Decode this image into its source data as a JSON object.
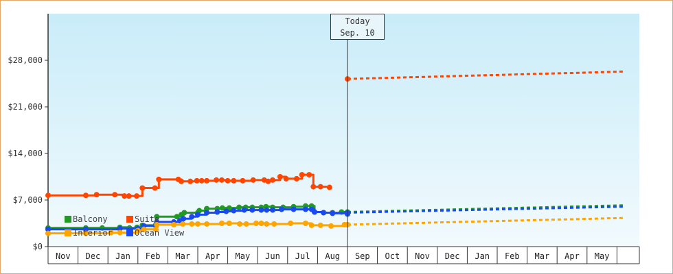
{
  "chart_data": {
    "type": "line",
    "ylim": [
      0,
      35000
    ],
    "y_ticks": [
      "$0",
      "$7,000",
      "$14,000",
      "$21,000",
      "$28,000"
    ],
    "y_tick_values": [
      0,
      7000,
      14000,
      21000,
      28000
    ],
    "x_ticks": [
      "Nov",
      "Dec",
      "Jan",
      "Feb",
      "Mar",
      "Apr",
      "May",
      "Jun",
      "Jul",
      "Aug",
      "Sep",
      "Oct",
      "Nov",
      "Dec",
      "Jan",
      "Feb",
      "Mar",
      "Apr",
      "May"
    ],
    "x_range_months": [
      0,
      19.2
    ],
    "today": {
      "line1": "Today",
      "line2": "Sep. 10",
      "x": 10.0
    },
    "colors": {
      "Suite": "#ff4500",
      "Balcony": "#229922",
      "Ocean View": "#1a4aee",
      "Interior": "#ffa500"
    },
    "legend": [
      {
        "name": "Balcony",
        "color": "#229922"
      },
      {
        "name": "Suite",
        "color": "#ff4500"
      },
      {
        "name": "Interior",
        "color": "#ffa500"
      },
      {
        "name": "Ocean View",
        "color": "#1a4aee"
      }
    ],
    "series": [
      {
        "name": "Suite",
        "history": [
          [
            0,
            7700
          ],
          [
            1.26,
            7700
          ],
          [
            1.62,
            7800
          ],
          [
            2.23,
            7800
          ],
          [
            2.55,
            7600
          ],
          [
            2.7,
            7600
          ],
          [
            2.96,
            7600
          ],
          [
            3.15,
            8800
          ],
          [
            3.57,
            8800
          ],
          [
            3.7,
            10100
          ],
          [
            4.35,
            10100
          ],
          [
            4.45,
            9800
          ],
          [
            4.75,
            9800
          ],
          [
            4.97,
            9900
          ],
          [
            5.13,
            9900
          ],
          [
            5.3,
            9900
          ],
          [
            5.62,
            10000
          ],
          [
            5.8,
            10000
          ],
          [
            6.0,
            9900
          ],
          [
            6.2,
            9900
          ],
          [
            6.5,
            9900
          ],
          [
            6.85,
            10000
          ],
          [
            7.22,
            10000
          ],
          [
            7.35,
            9800
          ],
          [
            7.5,
            10000
          ],
          [
            7.75,
            10500
          ],
          [
            7.95,
            10200
          ],
          [
            8.3,
            10200
          ],
          [
            8.48,
            10800
          ],
          [
            8.72,
            10800
          ],
          [
            8.86,
            9000
          ],
          [
            9.1,
            9000
          ],
          [
            9.4,
            8900
          ]
        ],
        "forecast": [
          [
            10.0,
            25200
          ],
          [
            19.2,
            26300
          ]
        ]
      },
      {
        "name": "Balcony",
        "history": [
          [
            0,
            2800
          ],
          [
            1.26,
            2800
          ],
          [
            1.81,
            2800
          ],
          [
            2.4,
            2900
          ],
          [
            2.72,
            2800
          ],
          [
            2.97,
            2900
          ],
          [
            3.15,
            3200
          ],
          [
            3.6,
            3300
          ],
          [
            3.63,
            4500
          ],
          [
            4.3,
            4500
          ],
          [
            4.45,
            4800
          ],
          [
            4.55,
            5100
          ],
          [
            5.0,
            5100
          ],
          [
            5.05,
            5400
          ],
          [
            5.3,
            5700
          ],
          [
            5.65,
            5700
          ],
          [
            5.82,
            5800
          ],
          [
            6.05,
            5800
          ],
          [
            6.38,
            5900
          ],
          [
            6.6,
            5900
          ],
          [
            6.82,
            5900
          ],
          [
            7.12,
            5900
          ],
          [
            7.28,
            6000
          ],
          [
            7.5,
            5900
          ],
          [
            7.85,
            5900
          ],
          [
            8.2,
            6000
          ],
          [
            8.6,
            6100
          ],
          [
            8.8,
            6100
          ],
          [
            8.9,
            5200
          ],
          [
            9.2,
            5100
          ],
          [
            9.5,
            5100
          ],
          [
            9.8,
            5200
          ],
          [
            10.0,
            4900
          ]
        ],
        "forecast": [
          [
            10.0,
            5200
          ],
          [
            19.2,
            6200
          ]
        ]
      },
      {
        "name": "Ocean View",
        "history": [
          [
            0,
            2600
          ],
          [
            1.26,
            2600
          ],
          [
            2.4,
            2700
          ],
          [
            3.0,
            2700
          ],
          [
            3.2,
            3100
          ],
          [
            3.6,
            3100
          ],
          [
            3.63,
            3700
          ],
          [
            4.2,
            3700
          ],
          [
            4.4,
            3900
          ],
          [
            4.52,
            4200
          ],
          [
            4.8,
            4500
          ],
          [
            5.0,
            4800
          ],
          [
            5.3,
            5100
          ],
          [
            5.65,
            5200
          ],
          [
            5.95,
            5300
          ],
          [
            6.2,
            5400
          ],
          [
            6.55,
            5500
          ],
          [
            6.82,
            5500
          ],
          [
            7.12,
            5500
          ],
          [
            7.3,
            5500
          ],
          [
            7.5,
            5500
          ],
          [
            7.8,
            5600
          ],
          [
            8.2,
            5600
          ],
          [
            8.6,
            5600
          ],
          [
            8.8,
            5600
          ],
          [
            8.9,
            5200
          ],
          [
            9.2,
            5100
          ],
          [
            9.5,
            5000
          ],
          [
            10.0,
            4900
          ]
        ],
        "forecast": [
          [
            10.0,
            5100
          ],
          [
            19.2,
            6000
          ]
        ]
      },
      {
        "name": "Interior",
        "history": [
          [
            0,
            2000
          ],
          [
            1.26,
            2000
          ],
          [
            2.1,
            2100
          ],
          [
            2.4,
            2100
          ],
          [
            3.0,
            2400
          ],
          [
            3.2,
            2600
          ],
          [
            3.6,
            2600
          ],
          [
            3.63,
            3300
          ],
          [
            4.2,
            3300
          ],
          [
            4.5,
            3400
          ],
          [
            4.8,
            3400
          ],
          [
            5.0,
            3400
          ],
          [
            5.3,
            3400
          ],
          [
            5.8,
            3500
          ],
          [
            6.05,
            3500
          ],
          [
            6.4,
            3400
          ],
          [
            6.62,
            3400
          ],
          [
            6.95,
            3500
          ],
          [
            7.12,
            3500
          ],
          [
            7.3,
            3400
          ],
          [
            7.55,
            3400
          ],
          [
            8.1,
            3500
          ],
          [
            8.6,
            3500
          ],
          [
            8.8,
            3200
          ],
          [
            9.1,
            3200
          ],
          [
            9.45,
            3100
          ],
          [
            9.9,
            3300
          ],
          [
            10.0,
            3300
          ]
        ],
        "forecast": [
          [
            10.0,
            3300
          ],
          [
            19.2,
            4300
          ]
        ]
      }
    ]
  }
}
